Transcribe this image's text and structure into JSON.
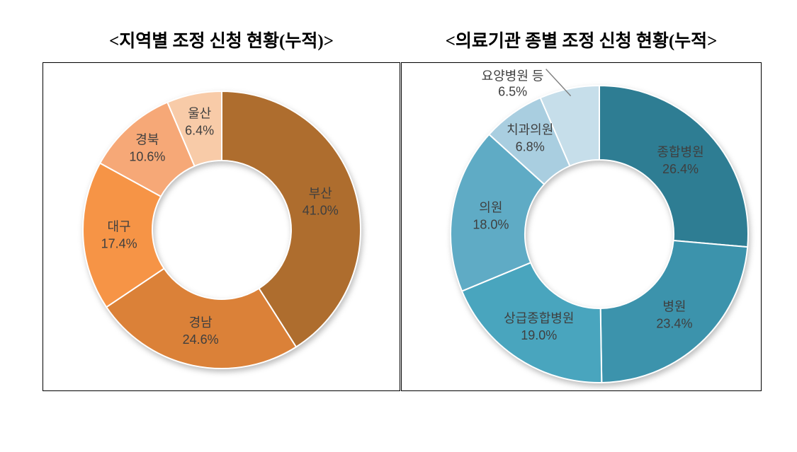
{
  "style": {
    "background": "#FFFFFF",
    "frame_border_color": "#000000",
    "label_color": "#3F3F3F",
    "leader_line_color": "#7F7F7F",
    "slice_separator_color": "#FFFFFF"
  },
  "chart_data": [
    {
      "type": "pie",
      "subtype": "donut",
      "title": "<지역별 조정 신청 현황(누적)>",
      "legend_position": "none",
      "grid": false,
      "inner_radius_ratio": 0.5,
      "start_angle_deg": 0,
      "direction": "clockwise",
      "slices": [
        {
          "label": "부산",
          "value": 41.0,
          "pct_label": "41.0%",
          "color": "#AE6D2E",
          "label_placement": "inside"
        },
        {
          "label": "경남",
          "value": 24.6,
          "pct_label": "24.6%",
          "color": "#DB8138",
          "label_placement": "inside"
        },
        {
          "label": "대구",
          "value": 17.4,
          "pct_label": "17.4%",
          "color": "#F69446",
          "label_placement": "inside"
        },
        {
          "label": "경북",
          "value": 10.6,
          "pct_label": "10.6%",
          "color": "#F6A877",
          "label_placement": "inside"
        },
        {
          "label": "울산",
          "value": 6.4,
          "pct_label": "6.4%",
          "color": "#F8CBA8",
          "label_placement": "inside"
        }
      ]
    },
    {
      "type": "pie",
      "subtype": "donut",
      "title": "<의료기관 종별 조정 신청 현황(누적>",
      "legend_position": "none",
      "grid": false,
      "inner_radius_ratio": 0.5,
      "start_angle_deg": 0,
      "direction": "clockwise",
      "slices": [
        {
          "label": "종합병원",
          "value": 26.4,
          "pct_label": "26.4%",
          "color": "#2E7D93",
          "label_placement": "inside"
        },
        {
          "label": "병원",
          "value": 23.4,
          "pct_label": "23.4%",
          "color": "#3C93AC",
          "label_placement": "inside"
        },
        {
          "label": "상급종합병원",
          "value": 19.0,
          "pct_label": "19.0%",
          "color": "#49A5BE",
          "label_placement": "inside"
        },
        {
          "label": "의원",
          "value": 18.0,
          "pct_label": "18.0%",
          "color": "#5FABC5",
          "label_placement": "inside"
        },
        {
          "label": "치과의원",
          "value": 6.8,
          "pct_label": "6.8%",
          "color": "#A9CEE0",
          "label_placement": "inside"
        },
        {
          "label": "요양병원 등",
          "value": 6.5,
          "pct_label": "6.5%",
          "color": "#C6DEEA",
          "label_placement": "outside-top-left"
        }
      ]
    }
  ]
}
